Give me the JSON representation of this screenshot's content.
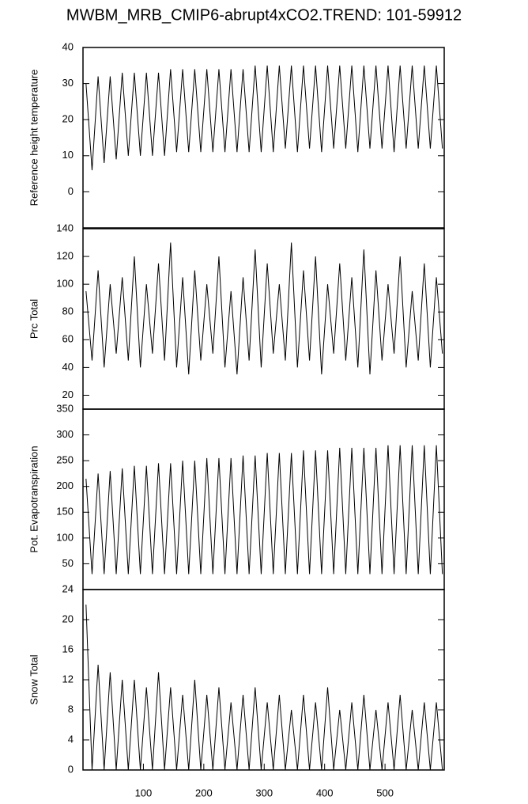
{
  "chart_data": [
    {
      "type": "line",
      "title": "MWBM_MRB_CMIP6-abrupt4xCO2.TREND: 101-59912",
      "ylabel": "Reference height temperature",
      "color": "#000000",
      "xlim": [
        0,
        598
      ],
      "ylim": [
        -10,
        40
      ],
      "yticks": [
        0,
        10,
        20,
        30,
        40
      ],
      "x": [
        5,
        15,
        25,
        35,
        45,
        55,
        65,
        75,
        85,
        95,
        105,
        115,
        125,
        135,
        145,
        155,
        165,
        175,
        185,
        195,
        205,
        215,
        225,
        235,
        245,
        255,
        265,
        275,
        285,
        295,
        305,
        315,
        325,
        335,
        345,
        355,
        365,
        375,
        385,
        395,
        405,
        415,
        425,
        435,
        445,
        455,
        465,
        475,
        485,
        495,
        505,
        515,
        525,
        535,
        545,
        555,
        565,
        575,
        585,
        595
      ],
      "values": [
        30,
        6,
        32,
        8,
        32,
        9,
        33,
        10,
        33,
        10,
        33,
        10,
        33,
        10,
        34,
        11,
        34,
        11,
        34,
        11,
        34,
        11,
        34,
        11,
        34,
        11,
        34,
        11,
        35,
        11,
        35,
        11,
        35,
        12,
        35,
        11,
        35,
        12,
        35,
        11,
        35,
        12,
        35,
        12,
        35,
        11,
        35,
        12,
        35,
        12,
        35,
        11,
        35,
        12,
        35,
        12,
        35,
        12,
        35,
        12
      ]
    },
    {
      "type": "line",
      "ylabel": "Prc Total",
      "color": "#000000",
      "xlim": [
        0,
        598
      ],
      "ylim": [
        10,
        140
      ],
      "yticks": [
        20,
        40,
        60,
        80,
        100,
        120,
        140
      ],
      "x": [
        5,
        15,
        25,
        35,
        45,
        55,
        65,
        75,
        85,
        95,
        105,
        115,
        125,
        135,
        145,
        155,
        165,
        175,
        185,
        195,
        205,
        215,
        225,
        235,
        245,
        255,
        265,
        275,
        285,
        295,
        305,
        315,
        325,
        335,
        345,
        355,
        365,
        375,
        385,
        395,
        405,
        415,
        425,
        435,
        445,
        455,
        465,
        475,
        485,
        495,
        505,
        515,
        525,
        535,
        545,
        555,
        565,
        575,
        585,
        595
      ],
      "values": [
        95,
        45,
        110,
        40,
        100,
        50,
        105,
        45,
        120,
        40,
        100,
        50,
        115,
        45,
        130,
        40,
        105,
        35,
        110,
        45,
        100,
        50,
        120,
        40,
        95,
        35,
        105,
        45,
        125,
        40,
        115,
        50,
        100,
        45,
        130,
        40,
        110,
        45,
        120,
        35,
        100,
        50,
        115,
        45,
        105,
        40,
        125,
        35,
        110,
        45,
        100,
        50,
        120,
        40,
        95,
        45,
        115,
        40,
        105,
        50
      ]
    },
    {
      "type": "line",
      "ylabel": "Pot. Evapotranspiration",
      "color": "#000000",
      "xlim": [
        0,
        598
      ],
      "ylim": [
        0,
        350
      ],
      "yticks": [
        50,
        100,
        150,
        200,
        250,
        300,
        350
      ],
      "x": [
        5,
        15,
        25,
        35,
        45,
        55,
        65,
        75,
        85,
        95,
        105,
        115,
        125,
        135,
        145,
        155,
        165,
        175,
        185,
        195,
        205,
        215,
        225,
        235,
        245,
        255,
        265,
        275,
        285,
        295,
        305,
        315,
        325,
        335,
        345,
        355,
        365,
        375,
        385,
        395,
        405,
        415,
        425,
        435,
        445,
        455,
        465,
        475,
        485,
        495,
        505,
        515,
        525,
        535,
        545,
        555,
        565,
        575,
        585,
        595
      ],
      "values": [
        215,
        30,
        225,
        30,
        230,
        30,
        235,
        30,
        240,
        30,
        240,
        30,
        245,
        30,
        245,
        30,
        250,
        30,
        250,
        30,
        255,
        30,
        255,
        30,
        255,
        30,
        260,
        30,
        260,
        30,
        265,
        30,
        265,
        30,
        265,
        30,
        270,
        30,
        270,
        30,
        270,
        30,
        275,
        30,
        275,
        30,
        275,
        30,
        275,
        30,
        280,
        30,
        280,
        30,
        280,
        30,
        280,
        30,
        280,
        30
      ]
    },
    {
      "type": "line",
      "ylabel": "Snow Total",
      "color": "#000000",
      "xlim": [
        0,
        598
      ],
      "ylim": [
        0,
        24
      ],
      "yticks": [
        0,
        4,
        8,
        12,
        16,
        20,
        24
      ],
      "xticks": [
        100,
        200,
        300,
        400,
        500
      ],
      "x": [
        5,
        15,
        25,
        35,
        45,
        55,
        65,
        75,
        85,
        95,
        105,
        115,
        125,
        135,
        145,
        155,
        165,
        175,
        185,
        195,
        205,
        215,
        225,
        235,
        245,
        255,
        265,
        275,
        285,
        295,
        305,
        315,
        325,
        335,
        345,
        355,
        365,
        375,
        385,
        395,
        405,
        415,
        425,
        435,
        445,
        455,
        465,
        475,
        485,
        495,
        505,
        515,
        525,
        535,
        545,
        555,
        565,
        575,
        585,
        595
      ],
      "values": [
        22,
        0,
        14,
        0,
        13,
        0,
        12,
        0,
        12,
        0,
        11,
        0,
        13,
        0,
        11,
        0,
        10,
        0,
        12,
        0,
        10,
        0,
        11,
        0,
        9,
        0,
        10,
        0,
        11,
        0,
        9,
        0,
        10,
        0,
        8,
        0,
        10,
        0,
        9,
        0,
        11,
        0,
        8,
        0,
        9,
        0,
        10,
        0,
        8,
        0,
        9,
        0,
        10,
        0,
        8,
        0,
        9,
        0,
        9,
        0
      ]
    }
  ]
}
